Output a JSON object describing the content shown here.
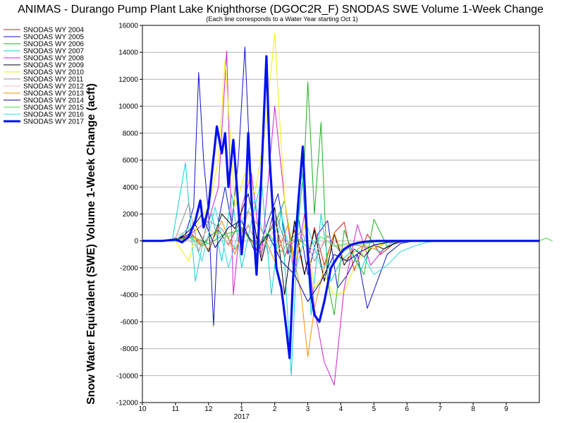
{
  "chart_data": {
    "type": "line",
    "title": "ANIMAS - Durango Pump Plant Lake Knighthorse (DGOC2R_F) SNODAS SWE Volume 1-Week Change",
    "subtitle": "(Each line corresponds to a Water Year starting Oct 1)",
    "ylabel": "Snow Water Equivalent (SWE) Volume 1-Week Change (acft)",
    "xlabel": "",
    "ylim": [
      -12000,
      16000
    ],
    "yticks": [
      -12000,
      -10000,
      -8000,
      -6000,
      -4000,
      -2000,
      0,
      2000,
      4000,
      6000,
      8000,
      10000,
      12000,
      14000,
      16000
    ],
    "xlim": [
      0,
      12
    ],
    "xticks": [
      {
        "x": 0,
        "label": "10"
      },
      {
        "x": 1,
        "label": "11"
      },
      {
        "x": 2,
        "label": "12"
      },
      {
        "x": 3,
        "label": "1"
      },
      {
        "x": 4,
        "label": "2"
      },
      {
        "x": 5,
        "label": "3"
      },
      {
        "x": 6,
        "label": "4"
      },
      {
        "x": 7,
        "label": "5"
      },
      {
        "x": 8,
        "label": "6"
      },
      {
        "x": 9,
        "label": "7"
      },
      {
        "x": 10,
        "label": "8"
      },
      {
        "x": 11,
        "label": "9"
      }
    ],
    "year_label": {
      "x": 3,
      "label": "2017"
    },
    "grid": "horizontal",
    "legend_position": "left",
    "series": [
      {
        "name": "SNODAS WY 2004",
        "color": "#d62020",
        "bold": false,
        "x": [
          0,
          0.8,
          1.2,
          1.5,
          1.8,
          2.0,
          2.3,
          2.6,
          2.9,
          3.2,
          3.5,
          3.8,
          4.0,
          4.3,
          4.6,
          4.9,
          5.2,
          5.5,
          5.8,
          6.1,
          6.4,
          6.8,
          7.2,
          7.6,
          8.0,
          12
        ],
        "y": [
          0,
          0,
          200,
          500,
          -400,
          300,
          800,
          -300,
          1200,
          400,
          -800,
          600,
          1500,
          -1200,
          800,
          -2500,
          1000,
          -1800,
          600,
          1400,
          -2200,
          500,
          -1000,
          -200,
          0,
          0
        ]
      },
      {
        "name": "SNODAS WY 2005",
        "color": "#1010c8",
        "bold": false,
        "x": [
          0,
          0.6,
          1.0,
          1.3,
          1.55,
          1.7,
          1.85,
          2.0,
          2.15,
          2.3,
          2.5,
          2.7,
          2.9,
          3.1,
          3.3,
          3.5,
          3.8,
          4.1,
          4.4,
          4.7,
          5.0,
          5.3,
          5.6,
          5.9,
          6.2,
          6.5,
          6.8,
          7.1,
          7.4,
          7.8,
          8.2,
          12
        ],
        "y": [
          0,
          0,
          100,
          500,
          2500,
          12500,
          6000,
          2000,
          -6300,
          1500,
          4000,
          1200,
          6000,
          14400,
          3000,
          -800,
          1500,
          3500,
          -1000,
          2000,
          -2500,
          500,
          1500,
          -3500,
          -2500,
          -1000,
          -5000,
          -3000,
          -1000,
          -200,
          0,
          0
        ]
      },
      {
        "name": "SNODAS WY 2006",
        "color": "#20b020",
        "bold": false,
        "x": [
          0,
          1.0,
          1.5,
          2.0,
          2.5,
          3.0,
          3.5,
          4.0,
          4.3,
          4.6,
          4.9,
          5.0,
          5.2,
          5.4,
          5.6,
          5.8,
          6.1,
          6.4,
          6.7,
          7.0,
          7.4,
          7.8,
          8.2,
          12
        ],
        "y": [
          0,
          0,
          300,
          -200,
          500,
          800,
          -400,
          1200,
          3000,
          -1500,
          6000,
          11800,
          2000,
          8800,
          -3000,
          -5500,
          800,
          -1200,
          -2500,
          1600,
          -400,
          -100,
          0,
          0
        ]
      },
      {
        "name": "SNODAS WY 2007",
        "color": "#10d0d0",
        "bold": false,
        "x": [
          0,
          0.9,
          1.3,
          1.6,
          1.9,
          2.1,
          2.4,
          2.7,
          3.0,
          3.3,
          3.6,
          3.9,
          4.2,
          4.5,
          4.8,
          5.1,
          5.4,
          5.7,
          6.0,
          6.3,
          6.6,
          6.9,
          7.2,
          7.5,
          7.8,
          8.2,
          12
        ],
        "y": [
          0,
          0,
          5800,
          -3000,
          800,
          2000,
          -1500,
          3500,
          -2000,
          1500,
          4500,
          -4000,
          2500,
          -10000,
          6000,
          -5500,
          2000,
          -3000,
          -1500,
          -800,
          -2200,
          -500,
          -800,
          -200,
          0,
          0,
          0
        ]
      },
      {
        "name": "SNODAS WY 2008",
        "color": "#d020d0",
        "bold": false,
        "x": [
          0,
          1.2,
          1.6,
          2.0,
          2.3,
          2.55,
          2.75,
          3.0,
          3.3,
          3.6,
          4.0,
          4.3,
          4.6,
          4.9,
          5.2,
          5.5,
          5.8,
          6.1,
          6.5,
          6.9,
          7.3,
          7.6,
          8.0,
          12
        ],
        "y": [
          0,
          0,
          800,
          1500,
          4000,
          14100,
          -4000,
          2500,
          5000,
          -1200,
          10000,
          3000,
          -2500,
          2000,
          -5000,
          -9000,
          -10700,
          -3500,
          1200,
          -1800,
          -600,
          -200,
          0,
          0
        ]
      },
      {
        "name": "SNODAS WY 2009",
        "color": "#000000",
        "bold": false,
        "x": [
          0,
          0.8,
          1.2,
          1.6,
          2.0,
          2.4,
          2.8,
          3.2,
          3.6,
          4.0,
          4.3,
          4.6,
          4.9,
          5.2,
          5.5,
          5.8,
          6.1,
          6.4,
          6.7,
          7.0,
          7.3,
          7.7,
          8.1,
          12
        ],
        "y": [
          0,
          0,
          300,
          1200,
          -800,
          2000,
          900,
          3500,
          -1500,
          2500,
          -4000,
          1500,
          -2500,
          800,
          -3000,
          500,
          -1800,
          -600,
          -1200,
          -300,
          -600,
          -100,
          0,
          0
        ]
      },
      {
        "name": "SNODAS WY 2010",
        "color": "#f0f000",
        "bold": false,
        "x": [
          0,
          1.0,
          1.4,
          1.7,
          2.0,
          2.3,
          2.5,
          2.8,
          3.1,
          3.4,
          3.7,
          4.0,
          4.15,
          4.3,
          4.6,
          4.9,
          5.2,
          5.5,
          5.8,
          6.1,
          6.4,
          6.7,
          7.0,
          7.3,
          7.7,
          8.1,
          12
        ],
        "y": [
          0,
          0,
          -1500,
          1500,
          2500,
          6000,
          13500,
          2500,
          5000,
          3500,
          8000,
          15400,
          9000,
          3000,
          -1800,
          1200,
          -3500,
          -2500,
          -4000,
          -3800,
          -2000,
          -800,
          -400,
          -200,
          0,
          0,
          0
        ]
      },
      {
        "name": "SNODAS WY 2011",
        "color": "#909090",
        "bold": false,
        "x": [
          0,
          0.7,
          1.0,
          1.4,
          1.7,
          2.0,
          2.4,
          2.8,
          3.2,
          3.6,
          4.0,
          4.4,
          4.8,
          5.2,
          5.6,
          6.0,
          6.4,
          6.8,
          7.2,
          7.6,
          8.0,
          12
        ],
        "y": [
          0,
          0,
          200,
          2800,
          -800,
          1500,
          900,
          -600,
          1200,
          -1000,
          2200,
          -700,
          800,
          -1500,
          400,
          -900,
          -300,
          -500,
          -200,
          -100,
          0,
          0
        ]
      },
      {
        "name": "SNODAS WY 2012",
        "color": "#ffb0b0",
        "bold": false,
        "x": [
          0,
          0.8,
          1.2,
          1.6,
          2.0,
          2.4,
          2.8,
          3.2,
          3.6,
          4.0,
          4.4,
          4.8,
          5.2,
          5.6,
          6.0,
          6.4,
          6.8,
          7.2,
          7.6,
          12
        ],
        "y": [
          0,
          0,
          600,
          -400,
          900,
          300,
          -700,
          1100,
          -500,
          800,
          -300,
          600,
          -900,
          300,
          -400,
          -200,
          -100,
          -50,
          0,
          0
        ]
      },
      {
        "name": "SNODAS WY 2013",
        "color": "#f09000",
        "bold": false,
        "x": [
          0,
          1.0,
          1.5,
          2.0,
          2.4,
          2.8,
          3.2,
          3.6,
          4.0,
          4.4,
          4.8,
          5.0,
          5.2,
          5.5,
          5.8,
          6.1,
          6.4,
          6.7,
          7.0,
          7.4,
          7.8,
          12
        ],
        "y": [
          0,
          0,
          400,
          -600,
          1500,
          -1000,
          2200,
          800,
          -1500,
          1200,
          -4000,
          -8600,
          -5000,
          -2000,
          600,
          -1500,
          -800,
          -300,
          -600,
          -100,
          0,
          0
        ]
      },
      {
        "name": "SNODAS WY 2014",
        "color": "#0000a0",
        "bold": false,
        "x": [
          0,
          1.0,
          1.4,
          1.8,
          2.2,
          2.6,
          3.0,
          3.4,
          3.8,
          4.2,
          4.6,
          5.0,
          5.4,
          5.8,
          6.2,
          6.6,
          7.0,
          7.4,
          7.8,
          12
        ],
        "y": [
          0,
          0,
          500,
          2000,
          -500,
          1000,
          1500,
          -800,
          500,
          -1500,
          -2500,
          -4500,
          -3000,
          -1000,
          -1500,
          -800,
          -300,
          -100,
          0,
          0
        ]
      },
      {
        "name": "SNODAS WY 2015",
        "color": "#40e040",
        "bold": false,
        "x": [
          0,
          1.0,
          1.4,
          1.8,
          2.2,
          2.6,
          3.0,
          3.4,
          3.8,
          4.2,
          4.6,
          5.0,
          5.4,
          5.8,
          6.2,
          6.6,
          7.0,
          7.4,
          7.8,
          8.2,
          12,
          12.2,
          12.4
        ],
        "y": [
          0,
          0,
          300,
          -400,
          700,
          300,
          1000,
          -600,
          600,
          -800,
          400,
          -500,
          300,
          -400,
          -200,
          -300,
          -100,
          -50,
          0,
          0,
          0,
          200,
          0
        ]
      },
      {
        "name": "SNODAS WY 2016",
        "color": "#30d8e0",
        "bold": false,
        "x": [
          0,
          1.0,
          1.4,
          1.8,
          2.2,
          2.6,
          3.0,
          3.4,
          3.8,
          4.2,
          4.6,
          5.0,
          5.4,
          5.8,
          6.2,
          6.6,
          7.0,
          7.4,
          7.8,
          8.2,
          8.6,
          9.0,
          12
        ],
        "y": [
          0,
          0,
          1000,
          -1500,
          2500,
          -2000,
          1500,
          3000,
          -1000,
          2000,
          -2500,
          1000,
          -2000,
          -1500,
          -500,
          -800,
          -2500,
          -1800,
          -800,
          -400,
          -100,
          0,
          0
        ]
      },
      {
        "name": "SNODAS WY 2017",
        "color": "#0010f0",
        "bold": true,
        "x": [
          0,
          0.6,
          1.0,
          1.2,
          1.4,
          1.6,
          1.75,
          1.85,
          2.0,
          2.1,
          2.25,
          2.4,
          2.5,
          2.6,
          2.75,
          2.9,
          3.0,
          3.1,
          3.2,
          3.3,
          3.45,
          3.6,
          3.75,
          3.85,
          3.95,
          4.05,
          4.2,
          4.35,
          4.45,
          4.55,
          4.7,
          4.85,
          5.0,
          5.1,
          5.2,
          5.35,
          5.5,
          5.7,
          5.9,
          6.1,
          6.3,
          6.5,
          6.7,
          6.9,
          7.1,
          12
        ],
        "y": [
          0,
          0,
          100,
          -100,
          300,
          1500,
          3000,
          1000,
          2500,
          5000,
          8500,
          6500,
          8000,
          4000,
          7500,
          2500,
          -1000,
          1500,
          8000,
          3000,
          -2500,
          5000,
          13700,
          6000,
          2000,
          -2000,
          -3500,
          -6500,
          -8700,
          -3000,
          2500,
          7000,
          -1000,
          -4000,
          -5500,
          -6000,
          -4500,
          -2000,
          -1200,
          -600,
          -300,
          -150,
          -80,
          -20,
          0,
          0
        ]
      }
    ]
  }
}
